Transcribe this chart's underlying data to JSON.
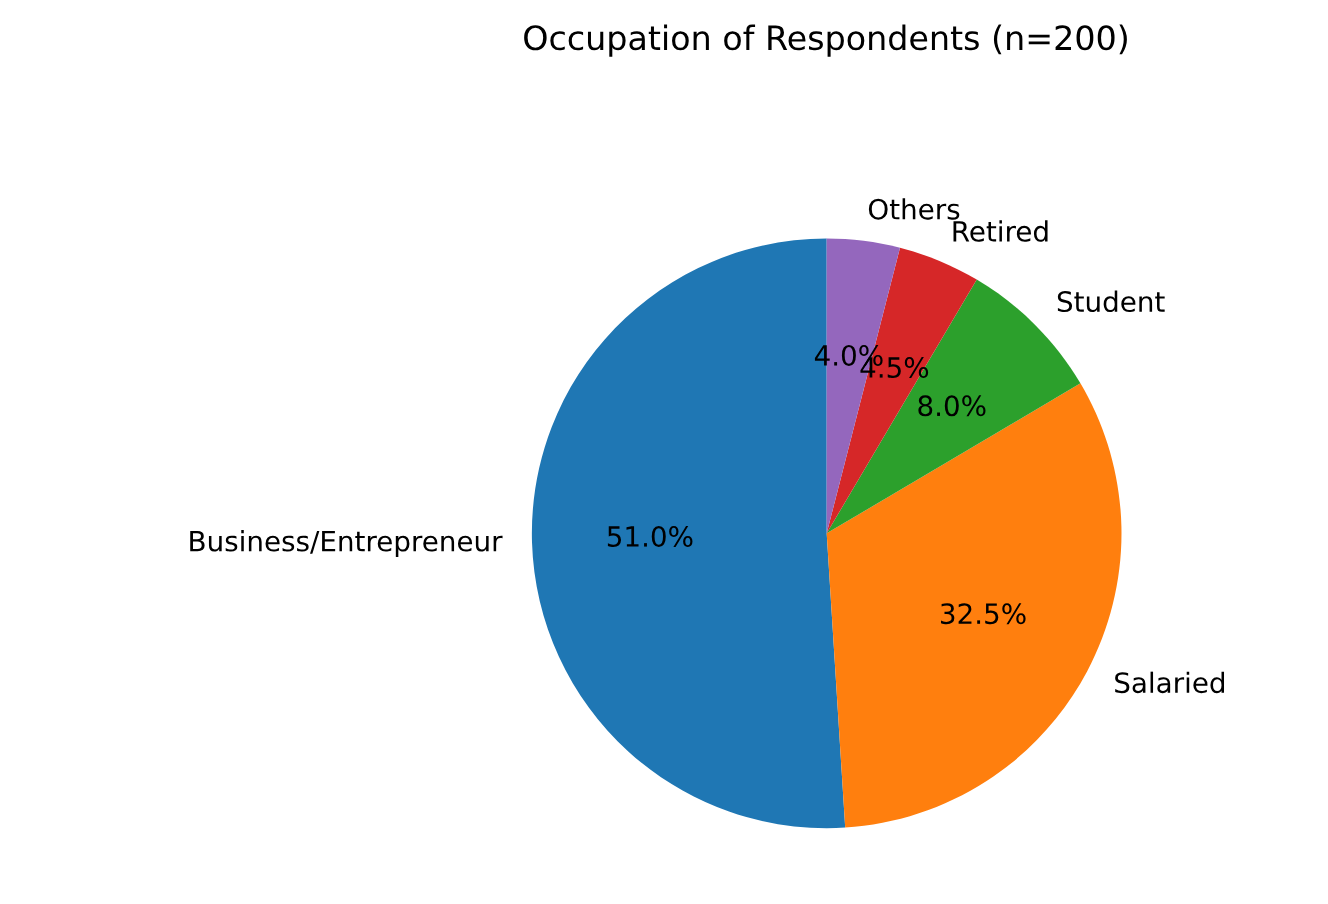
{
  "chart_data": {
    "type": "pie",
    "title": "Occupation of Respondents (n=200)",
    "categories": [
      "Business/Entrepreneur",
      "Salaried",
      "Student",
      "Retired",
      "Others"
    ],
    "values": [
      51.0,
      32.5,
      8.0,
      4.5,
      4.0
    ],
    "value_labels": [
      "51.0%",
      "32.5%",
      "8.0%",
      "4.5%",
      "4.0%"
    ],
    "colors": [
      "#1f77b4",
      "#ff7f0e",
      "#2ca02c",
      "#d62728",
      "#9467bd"
    ],
    "legend": false
  }
}
